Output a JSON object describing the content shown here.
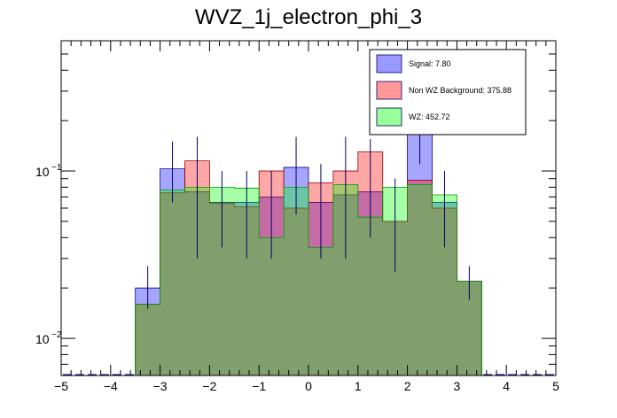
{
  "chart_data": {
    "type": "histogram",
    "title": "WVZ_1j_electron_phi_3",
    "xlabel": "",
    "ylabel": "",
    "xlim": [
      -5,
      5
    ],
    "ylog": true,
    "ylim": [
      0.006,
      0.6
    ],
    "x_ticks": [
      -5,
      -4,
      -3,
      -2,
      -1,
      0,
      1,
      2,
      3,
      4,
      5
    ],
    "x_tick_labels": [
      "−5",
      "−4",
      "−3",
      "−2",
      "−1",
      "0",
      "1",
      "2",
      "3",
      "4",
      "5"
    ],
    "y_tick_labels": [
      {
        "value": 0.1,
        "base": "10",
        "exp": "−1"
      },
      {
        "value": 0.01,
        "base": "10",
        "exp": "−2"
      }
    ],
    "bin_edges": [
      -3.5,
      -3.0,
      -2.5,
      -2.0,
      -1.5,
      -1.0,
      -0.5,
      0.0,
      0.5,
      1.0,
      1.5,
      2.0,
      2.5,
      3.0,
      3.5
    ],
    "legend": {
      "position": "top-right",
      "entries": [
        {
          "label": "Signal: 7.80",
          "color": "#9999ff"
        },
        {
          "label": "Non WZ Background: 375.88",
          "color": "#ff9999"
        },
        {
          "label": "WZ: 452.72",
          "color": "#99ff99"
        }
      ]
    },
    "series": [
      {
        "name": "Signal",
        "fill": "#0000ff",
        "opacity": 0.35,
        "stroke": "#000099",
        "values": [
          0.02,
          0.103,
          0.075,
          0.065,
          0.065,
          0.07,
          0.105,
          0.065,
          0.072,
          0.075,
          0.05,
          0.19,
          0.065,
          0.022
        ],
        "err_high": [
          0.027,
          0.15,
          0.16,
          0.1,
          0.1,
          0.1,
          0.16,
          0.11,
          0.16,
          0.155,
          0.09,
          0.22,
          0.1,
          0.027
        ],
        "err_low": [
          0.015,
          0.065,
          0.03,
          0.035,
          0.03,
          0.03,
          0.055,
          0.03,
          0.03,
          0.04,
          0.025,
          0.11,
          0.035,
          0.017
        ]
      },
      {
        "name": "Non WZ Background",
        "fill": "#ff0000",
        "opacity": 0.35,
        "stroke": "#990000",
        "values": [
          0.016,
          0.074,
          0.115,
          0.064,
          0.061,
          0.1,
          0.06,
          0.085,
          0.1,
          0.13,
          0.05,
          0.088,
          0.06,
          0.022
        ]
      },
      {
        "name": "WZ",
        "fill": "#00ff00",
        "opacity": 0.35,
        "stroke": "#009900",
        "values": [
          0.016,
          0.077,
          0.08,
          0.08,
          0.079,
          0.04,
          0.08,
          0.035,
          0.083,
          0.053,
          0.08,
          0.083,
          0.072,
          0.022
        ]
      }
    ]
  }
}
